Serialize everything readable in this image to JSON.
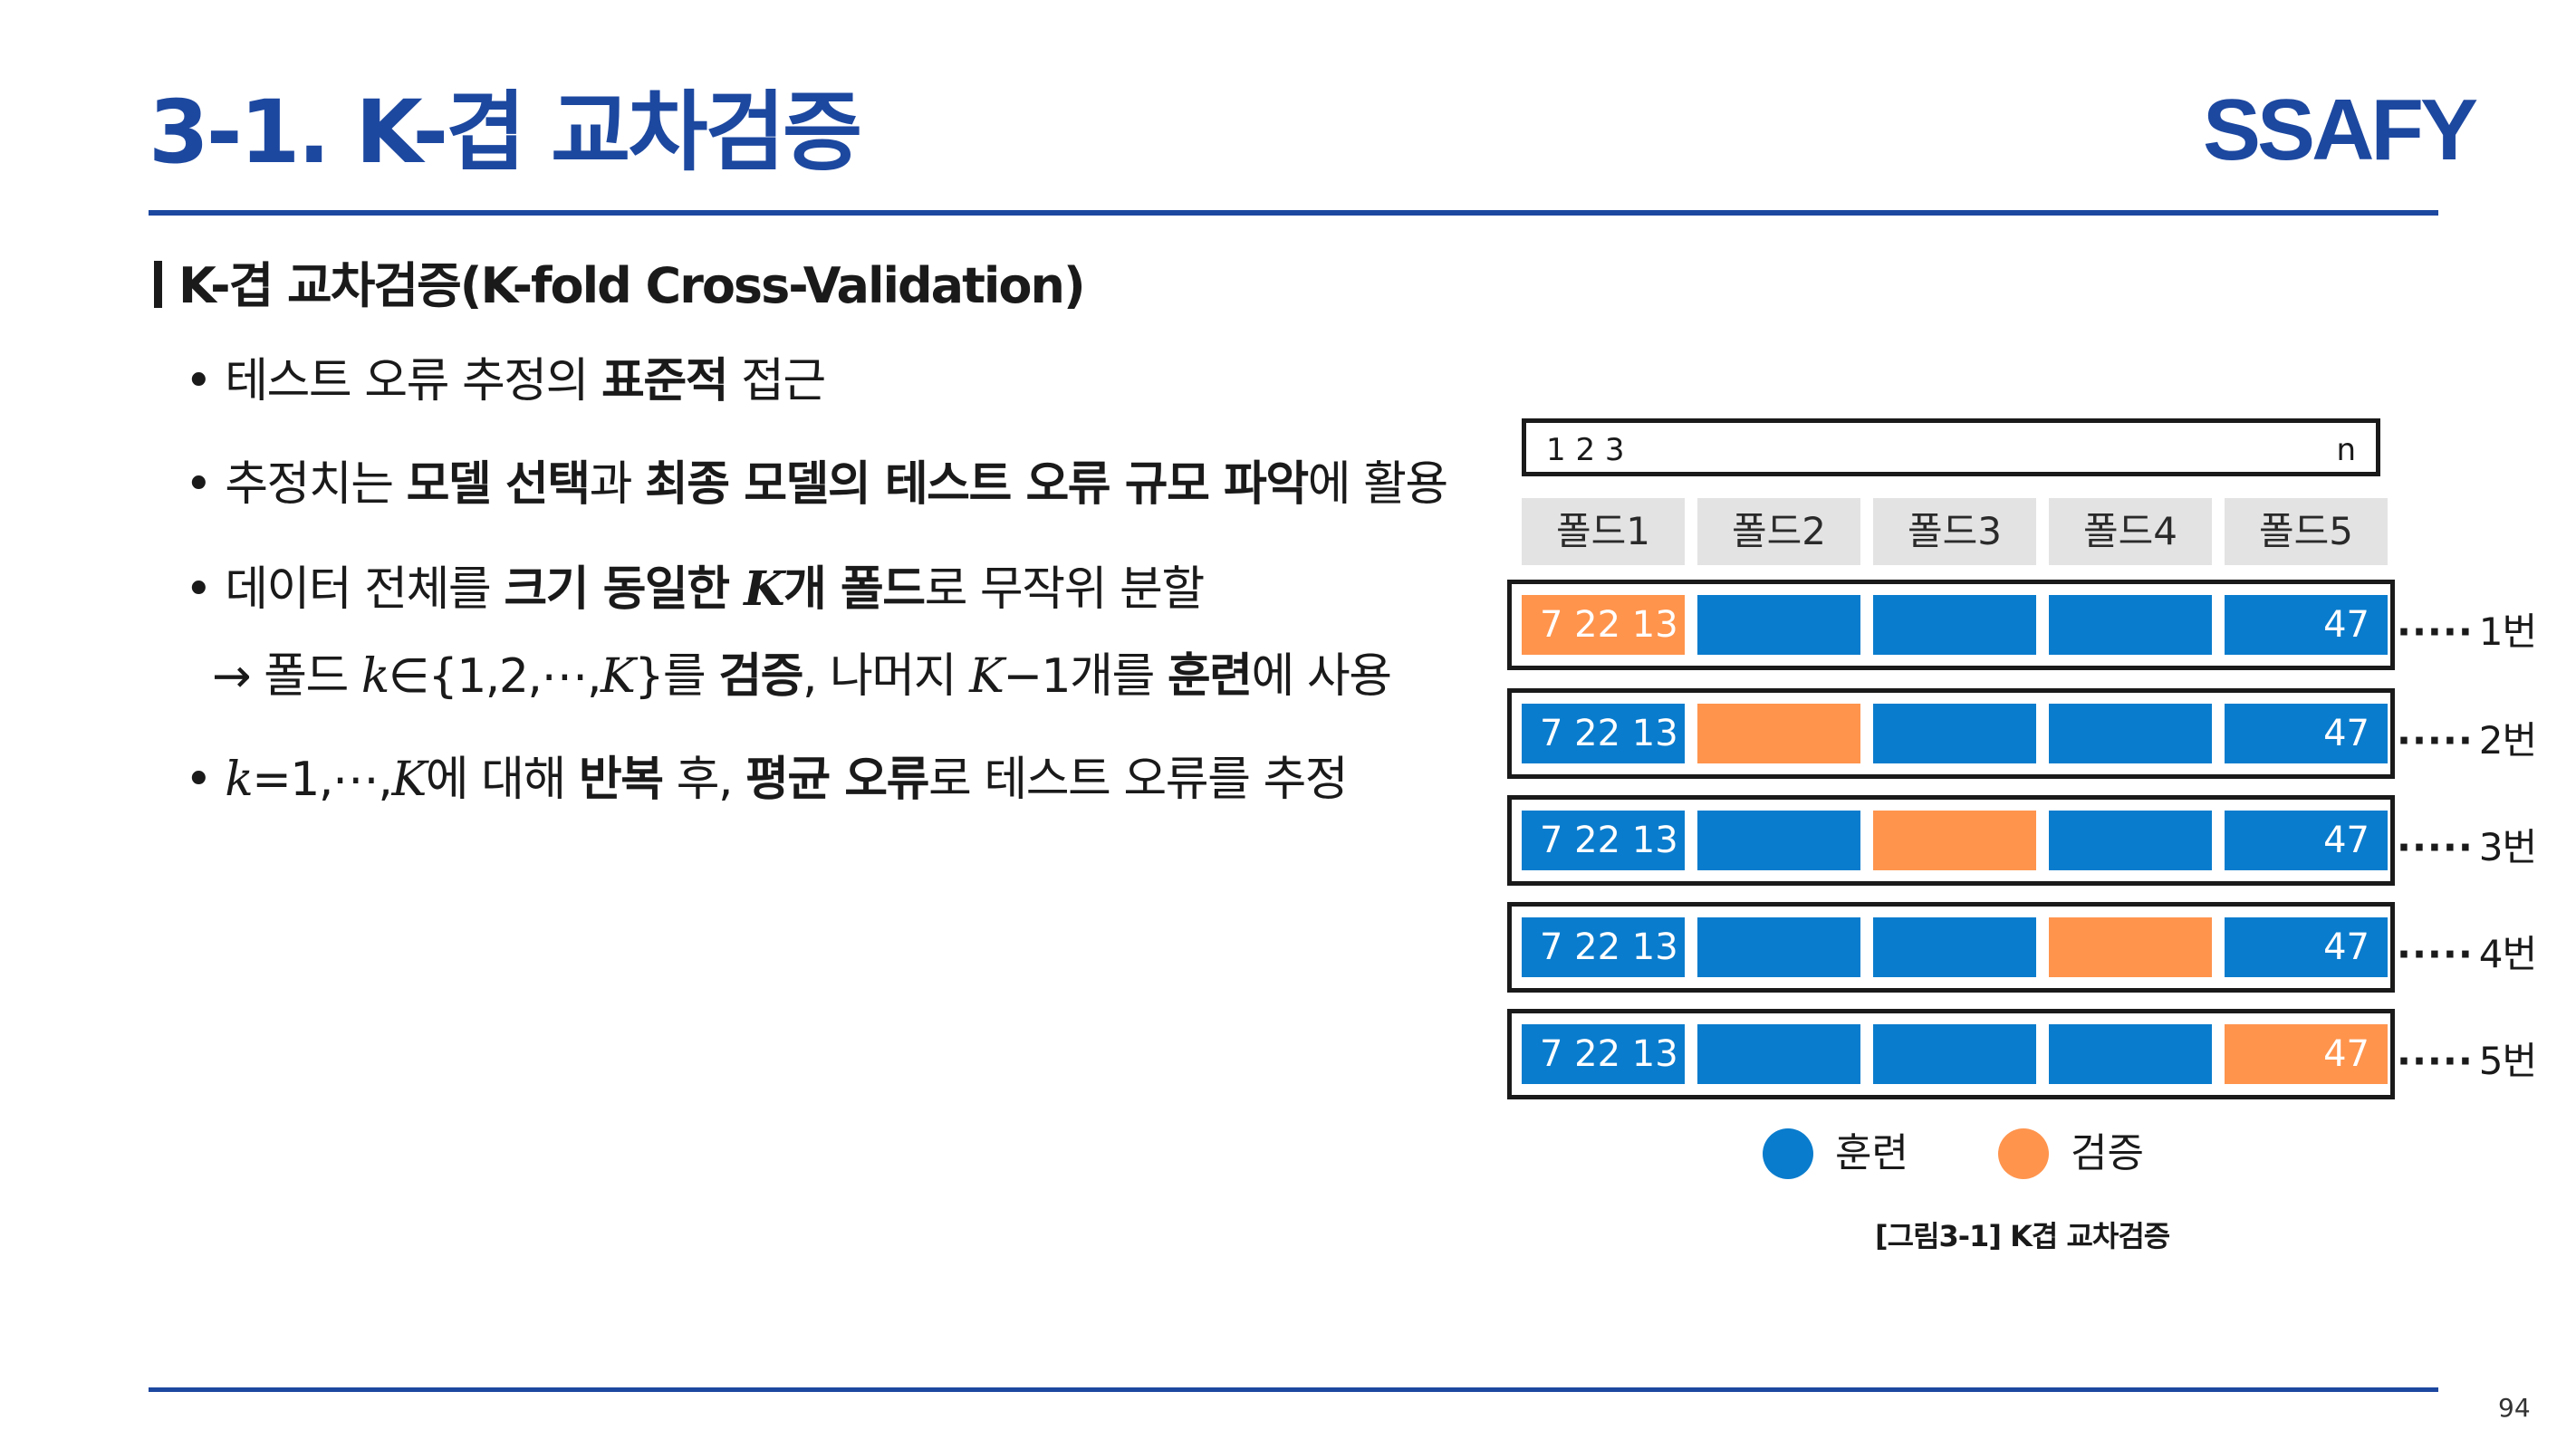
{
  "header": {
    "title": "3-1. K-겹 교차검증",
    "logo": "SSAFY"
  },
  "section": {
    "heading": "K-겹 교차검증(K-fold Cross-Validation)"
  },
  "bullets": {
    "b1": {
      "dot": "•",
      "p1": "테스트 오류 추정의 ",
      "bold1": "표준적",
      "p2": " 접근"
    },
    "b2": {
      "dot": "•",
      "p1": "추정치는 ",
      "bold1": "모델 선택",
      "p2": "과 ",
      "bold2": "최종 모델의 테스트 오류 규모 파악",
      "p3": "에 활용"
    },
    "b3": {
      "dot": "•",
      "p1": "데이터 전체를 ",
      "bold1": "크기 동일한 ",
      "math1": "K",
      "bold2": "개 폴드",
      "p2": "로 무작위 분할"
    },
    "b3_cont": {
      "arrow": "→",
      "p1": " 폴드 ",
      "math1": "k",
      "p2": "∈{1,2,⋯,",
      "math2": "K",
      "p3": "}를 ",
      "bold1": "검증",
      "p4": ", 나머지 ",
      "math3": "K",
      "p5": "−1개를 ",
      "bold2": "훈련",
      "p6": "에 사용"
    },
    "b4": {
      "dot": "•",
      "math1": "k",
      "p1": "=1,⋯,",
      "math2": "K",
      "p2": "에 대해 ",
      "bold1": "반복",
      "p3": " 후, ",
      "bold2": "평균 오류",
      "p4": "로 테스트 오류를 추정"
    }
  },
  "diagram": {
    "index_bar": {
      "left": "1 2 3",
      "right": "n"
    },
    "folds": [
      "폴드1",
      "폴드2",
      "폴드3",
      "폴드4",
      "폴드5"
    ],
    "cell_first_text": "7 22 13",
    "cell_last_text": "47",
    "row_dots": "·····",
    "rows": [
      {
        "label": "1번",
        "validation_fold": 1
      },
      {
        "label": "2번",
        "validation_fold": 2
      },
      {
        "label": "3번",
        "validation_fold": 3
      },
      {
        "label": "4번",
        "validation_fold": 4
      },
      {
        "label": "5번",
        "validation_fold": 5
      }
    ],
    "legend": {
      "train": "훈련",
      "validation": "검증"
    },
    "colors": {
      "train": "#0a7ccd",
      "validation": "#ff944d",
      "accent": "#1d48a0"
    },
    "caption": "[그림3-1]  K겹 교차검증"
  },
  "footer": {
    "page_number": "94"
  }
}
